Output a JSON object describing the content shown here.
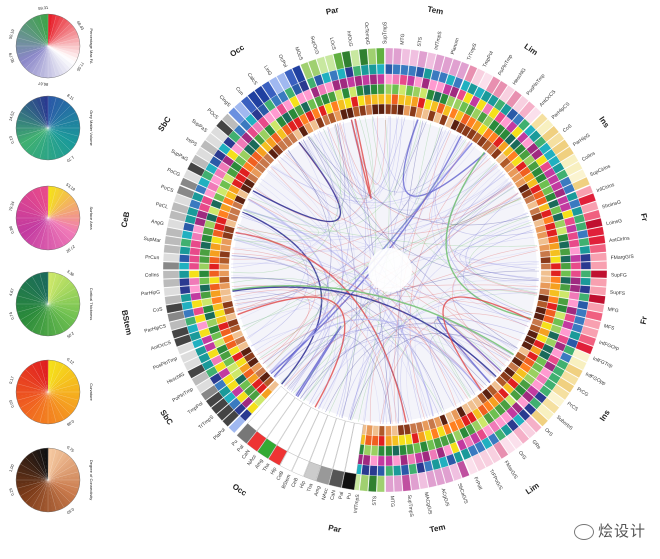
{
  "legends": [
    {
      "id": "legend-1",
      "title": "Percentage Max FA",
      "ticks": [
        "50.19",
        "59.31",
        "68.43",
        "77.55",
        "86.67",
        "95.79"
      ],
      "colors": [
        "#e8202a",
        "#ffffff",
        "#8a86c8",
        "#3da34a"
      ]
    },
    {
      "id": "legend-2",
      "title": "Grey Matter Volume",
      "ticks": [
        "14.52",
        "8.11",
        "1.70",
        "0.13"
      ],
      "colors": [
        "#2a5aa8",
        "#1a9a9a",
        "#40b070",
        "#2a3a90"
      ]
    },
    {
      "id": "legend-3",
      "title": "Surface Area",
      "ticks": [
        "79.34",
        "53.18",
        "27.02",
        "0.86"
      ],
      "colors": [
        "#f5e01a",
        "#f07ab8",
        "#c23aa0",
        "#e84a8a"
      ]
    },
    {
      "id": "legend-4",
      "title": "Cortical Thickness",
      "ticks": [
        "4.67",
        "3.36",
        "2.05",
        "0.74"
      ],
      "colors": [
        "#cde86a",
        "#6ec050",
        "#2a8a3a",
        "#1a6a5a"
      ]
    },
    {
      "id": "legend-5",
      "title": "Curvature",
      "ticks": [
        "0.17",
        "0.12",
        "0.08",
        "0.03"
      ],
      "colors": [
        "#f5e01a",
        "#f5a020",
        "#f06020",
        "#e02020"
      ]
    },
    {
      "id": "legend-6",
      "title": "Degree of Connectivity",
      "ticks": [
        "1.00",
        "0.75",
        "0.50",
        "0.25"
      ],
      "colors": [
        "#f5c8a0",
        "#c8784a",
        "#7a3a18",
        "#111111"
      ]
    }
  ],
  "lobes": [
    "Tem",
    "Lim",
    "Ins",
    "Fr",
    "Fr",
    "Ins",
    "Lim",
    "Tem",
    "Par",
    "Occ",
    "SbC",
    "BStem",
    "CeB",
    "SbC",
    "Occ",
    "Par"
  ],
  "regions_right": [
    "SupTmpS",
    "MTG",
    "STS",
    "InfTmpS",
    "Planum",
    "TrTmpS",
    "TmpPol",
    "PoPlnTmp",
    "HeschlG",
    "PosPlnTmp",
    "AntOcCS",
    "ParHipCS",
    "CoS",
    "ParHipG",
    "ColIns",
    "SupCirIns",
    "InfCirIns",
    "ShoInsG",
    "LoInsG",
    "AntCirIns",
    "FMargG/S",
    "SupFG",
    "SupFS",
    "MFG",
    "MFS",
    "InfFGOrp",
    "InfFGTrip",
    "InfFGOpp",
    "PrCG",
    "PrCS",
    "SuborbS",
    "OrS",
    "GRe",
    "OrG",
    "FMarG/S",
    "TrFPoG/S",
    "FrPoIl",
    "SbCaG/S",
    "ACgG/S",
    "MACgG/S"
  ],
  "regions_left": [
    "SupTmpS",
    "MTG",
    "STS",
    "InfTmpS",
    "PlaPol",
    "TrTmpS",
    "TmpPol",
    "PoPlnTmp",
    "HeschlG",
    "PosPlnTmp",
    "AntOcCS",
    "ParHipCS",
    "CoS",
    "ParHipG",
    "ColIns",
    "PrCun",
    "SupMar",
    "AngG",
    "PaCL",
    "PoCS",
    "PoCG",
    "SupPaG",
    "IntPS",
    "SupPaS",
    "POcS",
    "CingS",
    "Cun",
    "CalcS",
    "LinG",
    "OcPol",
    "MOcS",
    "SupOcG",
    "LOcS",
    "InfOcG",
    "OcTempG"
  ],
  "subcortical": [
    "Pu",
    "Pal",
    "CaN",
    "NAcc",
    "Amg",
    "Tha",
    "Hip",
    "CeB",
    "BStem",
    "CeB",
    "Hip",
    "Tha",
    "Amg",
    "NAcc",
    "CaN",
    "Pal",
    "Pu"
  ],
  "watermark": "烩设计"
}
